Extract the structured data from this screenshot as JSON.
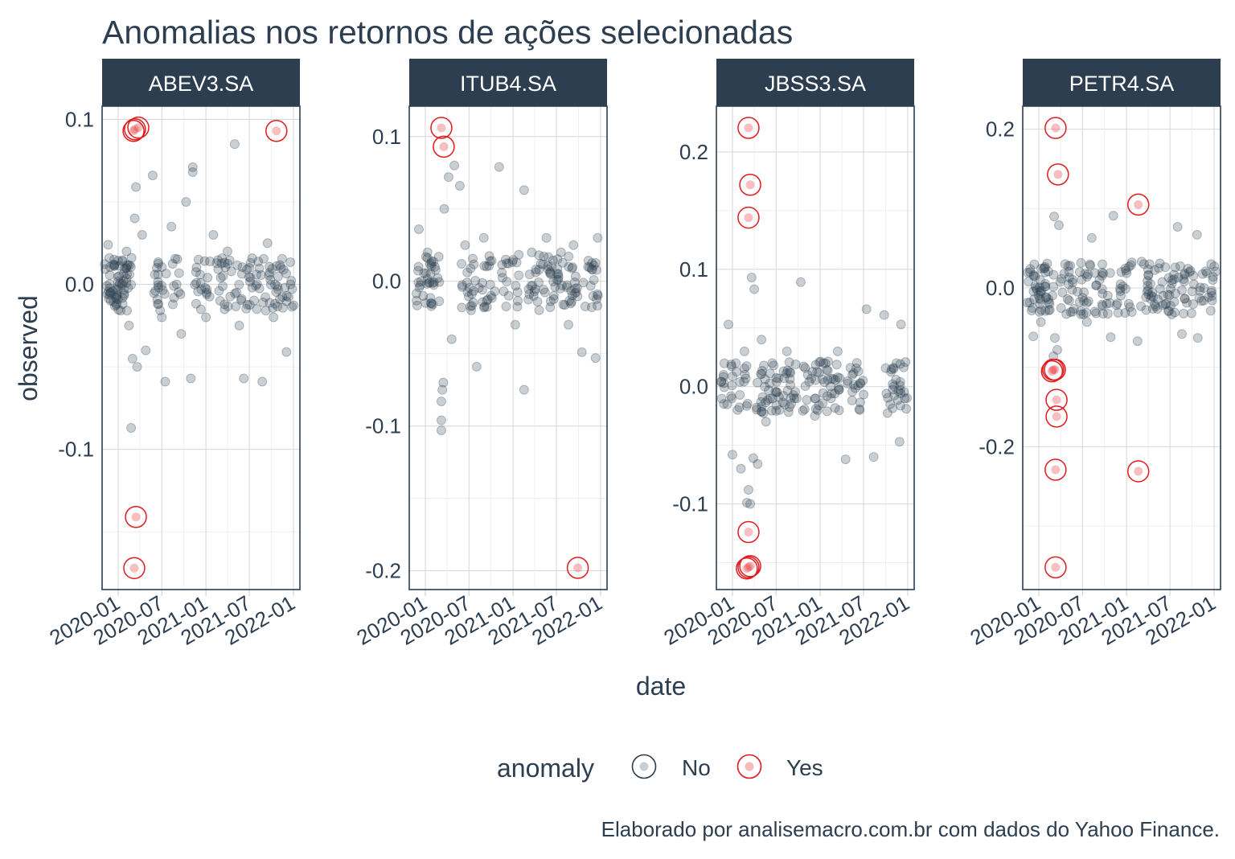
{
  "chart_data": {
    "type": "scatter",
    "title": "Anomalias nos retornos de ações selecionadas",
    "xlabel": "date",
    "ylabel": "observed",
    "caption": "Elaborado por analisemacro.com.br com dados do Yahoo Finance.",
    "grid": true,
    "legend": {
      "title": "anomaly",
      "position": "bottom",
      "entries": [
        "No",
        "Yes"
      ]
    },
    "colors": {
      "No": "#2c3e50",
      "Yes": "#e31a1c",
      "strip": "#2c3e50",
      "grid": "#d9d9d9"
    },
    "x_ticks": [
      "2020-01",
      "2020-07",
      "2021-01",
      "2021-07",
      "2022-01"
    ],
    "xlim": [
      "2019-10-26",
      "2022-01-28"
    ],
    "panels": [
      {
        "name": "ABEV3.SA",
        "ylim": [
          -0.185,
          0.108
        ],
        "y_ticks": [
          -0.1,
          0.0,
          0.1
        ],
        "y_tick_labels": [
          "-0.1",
          "0.0",
          "0.1"
        ],
        "anomalies": [
          [
            "2020-03-11",
            0.094
          ],
          [
            "2020-03-25",
            0.095
          ],
          [
            "2020-03-05",
            0.093
          ],
          [
            "2021-10-22",
            0.093
          ],
          [
            "2020-03-15",
            -0.141
          ],
          [
            "2020-03-08",
            -0.172
          ]
        ],
        "observed": [
          [
            "2019-11-20",
            0.024
          ],
          [
            "2019-12-01",
            -0.005
          ],
          [
            "2019-12-15",
            0.015
          ],
          [
            "2020-01-05",
            0.005
          ],
          [
            "2020-01-20",
            -0.012
          ],
          [
            "2020-02-05",
            0.02
          ],
          [
            "2020-02-15",
            -0.025
          ],
          [
            "2020-02-24",
            -0.087
          ],
          [
            "2020-03-01",
            -0.045
          ],
          [
            "2020-03-10",
            0.04
          ],
          [
            "2020-03-20",
            -0.05
          ],
          [
            "2020-03-15",
            0.059
          ],
          [
            "2020-04-10",
            0.03
          ],
          [
            "2020-04-25",
            -0.04
          ],
          [
            "2020-05-24",
            0.066
          ],
          [
            "2020-06-10",
            0.01
          ],
          [
            "2020-07-01",
            -0.02
          ],
          [
            "2020-07-15",
            -0.059
          ],
          [
            "2020-08-10",
            0.035
          ],
          [
            "2020-09-01",
            0.0
          ],
          [
            "2020-09-20",
            -0.03
          ],
          [
            "2020-10-10",
            0.05
          ],
          [
            "2020-10-30",
            -0.057
          ],
          [
            "2020-11-07",
            0.071
          ],
          [
            "2020-11-07",
            0.068
          ],
          [
            "2020-12-01",
            0.015
          ],
          [
            "2021-01-01",
            -0.02
          ],
          [
            "2021-02-01",
            0.03
          ],
          [
            "2021-03-01",
            -0.01
          ],
          [
            "2021-04-01",
            0.02
          ],
          [
            "2021-05-01",
            0.085
          ],
          [
            "2021-05-20",
            -0.025
          ],
          [
            "2021-06-08",
            -0.057
          ],
          [
            "2021-07-01",
            0.01
          ],
          [
            "2021-08-01",
            -0.015
          ],
          [
            "2021-08-24",
            -0.059
          ],
          [
            "2021-09-15",
            0.025
          ],
          [
            "2021-10-10",
            -0.02
          ],
          [
            "2021-11-10",
            0.01
          ],
          [
            "2021-12-03",
            -0.041
          ],
          [
            "2021-12-20",
            0.0
          ]
        ]
      },
      {
        "name": "ITUB4.SA",
        "ylim": [
          -0.213,
          0.121
        ],
        "y_ticks": [
          -0.2,
          -0.1,
          0.0,
          0.1
        ],
        "y_tick_labels": [
          "-0.2",
          "-0.1",
          "0.0",
          "0.1"
        ],
        "anomalies": [
          [
            "2020-03-08",
            0.106
          ],
          [
            "2020-03-18",
            0.093
          ],
          [
            "2021-09-28",
            -0.198
          ]
        ],
        "observed": [
          [
            "2019-12-05",
            0.036
          ],
          [
            "2019-12-15",
            0.0
          ],
          [
            "2020-01-10",
            0.02
          ],
          [
            "2020-01-25",
            -0.015
          ],
          [
            "2020-02-10",
            0.01
          ],
          [
            "2020-03-08",
            -0.103
          ],
          [
            "2020-03-08",
            -0.096
          ],
          [
            "2020-03-08",
            -0.083
          ],
          [
            "2020-03-12",
            -0.075
          ],
          [
            "2020-03-16",
            -0.07
          ],
          [
            "2020-03-20",
            0.05
          ],
          [
            "2020-04-07",
            0.072
          ],
          [
            "2020-05-01",
            0.08
          ],
          [
            "2020-05-24",
            0.066
          ],
          [
            "2020-04-20",
            -0.04
          ],
          [
            "2020-06-15",
            0.025
          ],
          [
            "2020-07-10",
            -0.02
          ],
          [
            "2020-08-02",
            -0.059
          ],
          [
            "2020-09-01",
            0.03
          ],
          [
            "2020-10-01",
            -0.01
          ],
          [
            "2020-11-04",
            0.079
          ],
          [
            "2020-12-01",
            0.015
          ],
          [
            "2021-01-10",
            -0.03
          ],
          [
            "2021-02-16",
            0.063
          ],
          [
            "2021-02-16",
            -0.075
          ],
          [
            "2021-03-20",
            0.02
          ],
          [
            "2021-04-20",
            -0.02
          ],
          [
            "2021-05-20",
            0.03
          ],
          [
            "2021-06-20",
            -0.01
          ],
          [
            "2021-07-20",
            0.02
          ],
          [
            "2021-08-20",
            -0.03
          ],
          [
            "2021-09-10",
            0.025
          ],
          [
            "2021-10-15",
            -0.049
          ],
          [
            "2021-11-10",
            0.01
          ],
          [
            "2021-12-11",
            -0.053
          ],
          [
            "2021-12-20",
            0.03
          ]
        ]
      },
      {
        "name": "JBSS3.SA",
        "ylim": [
          -0.173,
          0.239
        ],
        "y_ticks": [
          -0.1,
          0.0,
          0.1,
          0.2
        ],
        "y_tick_labels": [
          "-0.1",
          "0.0",
          "0.1",
          "0.2"
        ],
        "anomalies": [
          [
            "2020-03-08",
            0.2205
          ],
          [
            "2020-03-15",
            0.172
          ],
          [
            "2020-03-08",
            0.144
          ],
          [
            "2020-03-08",
            -0.124
          ],
          [
            "2020-03-08",
            -0.154
          ],
          [
            "2020-03-15",
            -0.153
          ],
          [
            "2020-03-01",
            -0.155
          ]
        ],
        "observed": [
          [
            "2019-11-25",
            0.01
          ],
          [
            "2019-12-15",
            0.053
          ],
          [
            "2020-01-01",
            -0.058
          ],
          [
            "2020-01-15",
            0.02
          ],
          [
            "2020-02-05",
            -0.07
          ],
          [
            "2020-02-20",
            0.03
          ],
          [
            "2020-03-01",
            -0.099
          ],
          [
            "2020-03-08",
            -0.088
          ],
          [
            "2020-03-15",
            -0.1
          ],
          [
            "2020-03-21",
            0.093
          ],
          [
            "2020-03-28",
            -0.061
          ],
          [
            "2020-04-01",
            0.083
          ],
          [
            "2020-04-15",
            -0.066
          ],
          [
            "2020-05-01",
            0.04
          ],
          [
            "2020-05-20",
            -0.03
          ],
          [
            "2020-06-15",
            0.02
          ],
          [
            "2020-07-15",
            -0.02
          ],
          [
            "2020-08-15",
            0.03
          ],
          [
            "2020-09-15",
            -0.01
          ],
          [
            "2020-10-12",
            0.089
          ],
          [
            "2020-11-10",
            0.01
          ],
          [
            "2020-12-10",
            -0.025
          ],
          [
            "2021-01-15",
            0.02
          ],
          [
            "2021-02-15",
            -0.01
          ],
          [
            "2021-03-15",
            0.03
          ],
          [
            "2021-04-17",
            -0.062
          ],
          [
            "2021-05-15",
            0.01
          ],
          [
            "2021-06-15",
            -0.02
          ],
          [
            "2021-07-13",
            0.066
          ],
          [
            "2021-08-12",
            -0.06
          ],
          [
            "2021-09-25",
            0.061
          ],
          [
            "2021-10-20",
            -0.015
          ],
          [
            "2021-11-15",
            0.02
          ],
          [
            "2021-11-28",
            -0.047
          ],
          [
            "2021-12-04",
            0.053
          ],
          [
            "2021-12-20",
            -0.01
          ]
        ]
      },
      {
        "name": "PETR4.SA",
        "ylim": [
          -0.38,
          0.229
        ],
        "y_ticks": [
          -0.2,
          0.0,
          0.2
        ],
        "y_tick_labels": [
          "-0.2",
          "0.0",
          "0.2"
        ],
        "anomalies": [
          [
            "2020-03-11",
            0.2015
          ],
          [
            "2020-03-21",
            0.143
          ],
          [
            "2021-02-19",
            0.105
          ],
          [
            "2020-03-01",
            -0.103
          ],
          [
            "2020-03-08",
            -0.103
          ],
          [
            "2020-02-25",
            -0.105
          ],
          [
            "2020-03-15",
            -0.141
          ],
          [
            "2020-03-15",
            -0.162
          ],
          [
            "2020-03-11",
            -0.229
          ],
          [
            "2021-02-19",
            -0.231
          ],
          [
            "2020-03-11",
            -0.352
          ]
        ],
        "observed": [
          [
            "2019-11-25",
            0.02
          ],
          [
            "2019-12-09",
            -0.061
          ],
          [
            "2019-12-20",
            0.0
          ],
          [
            "2020-01-10",
            -0.043
          ],
          [
            "2020-01-25",
            0.025
          ],
          [
            "2020-02-15",
            -0.02
          ],
          [
            "2020-03-05",
            0.09
          ],
          [
            "2020-03-08",
            -0.063
          ],
          [
            "2020-03-18",
            -0.078
          ],
          [
            "2020-03-02",
            -0.086
          ],
          [
            "2020-03-25",
            0.079
          ],
          [
            "2020-04-20",
            0.03
          ],
          [
            "2020-05-20",
            -0.03
          ],
          [
            "2020-06-20",
            0.02
          ],
          [
            "2020-07-20",
            -0.043
          ],
          [
            "2020-08-09",
            0.063
          ],
          [
            "2020-09-10",
            0.01
          ],
          [
            "2020-10-10",
            -0.02
          ],
          [
            "2020-10-27",
            -0.062
          ],
          [
            "2020-11-07",
            0.091
          ],
          [
            "2020-12-10",
            0.02
          ],
          [
            "2021-01-10",
            -0.02
          ],
          [
            "2021-02-16",
            -0.067
          ],
          [
            "2021-03-15",
            0.03
          ],
          [
            "2021-04-15",
            -0.01
          ],
          [
            "2021-05-15",
            0.025
          ],
          [
            "2021-06-15",
            -0.02
          ],
          [
            "2021-07-10",
            0.01
          ],
          [
            "2021-08-02",
            0.077
          ],
          [
            "2021-08-20",
            -0.058
          ],
          [
            "2021-09-20",
            0.02
          ],
          [
            "2021-10-22",
            0.067
          ],
          [
            "2021-10-25",
            -0.063
          ],
          [
            "2021-11-20",
            0.0
          ],
          [
            "2021-12-20",
            0.03
          ]
        ]
      }
    ]
  }
}
